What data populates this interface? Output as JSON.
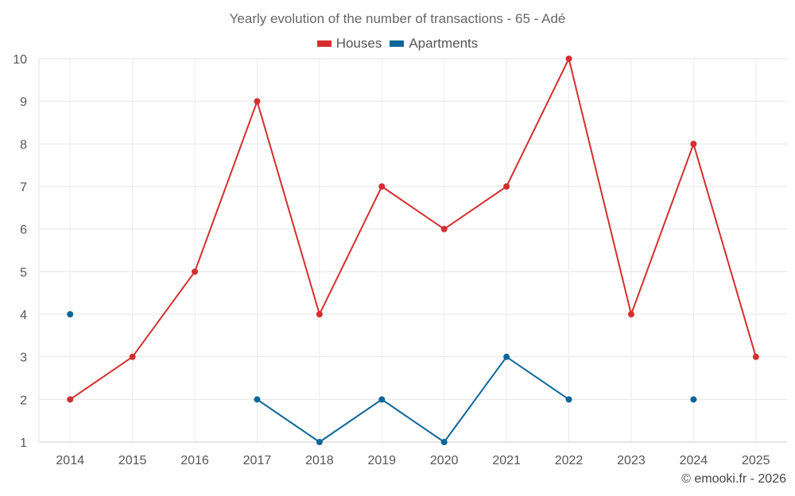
{
  "chart_data": {
    "type": "line",
    "title": "Yearly evolution of the number of transactions - 65 - Adé",
    "categories": [
      "2014",
      "2015",
      "2016",
      "2017",
      "2018",
      "2019",
      "2020",
      "2021",
      "2022",
      "2023",
      "2024",
      "2025"
    ],
    "series": [
      {
        "name": "Houses",
        "color": "#d32f2f",
        "values": [
          2,
          3,
          5,
          9,
          4,
          7,
          6,
          7,
          10,
          4,
          8,
          3
        ]
      },
      {
        "name": "Apartments",
        "color": "#0e6699",
        "values": [
          4,
          null,
          null,
          2,
          1,
          2,
          1,
          3,
          2,
          null,
          2,
          null
        ]
      }
    ],
    "ylim": [
      1,
      10
    ],
    "yticks": [
      "1",
      "2",
      "3",
      "4",
      "5",
      "6",
      "7",
      "8",
      "9",
      "10"
    ],
    "grid": true,
    "legend_position": "top-center"
  },
  "credit": "© emooki.fr - 2026"
}
